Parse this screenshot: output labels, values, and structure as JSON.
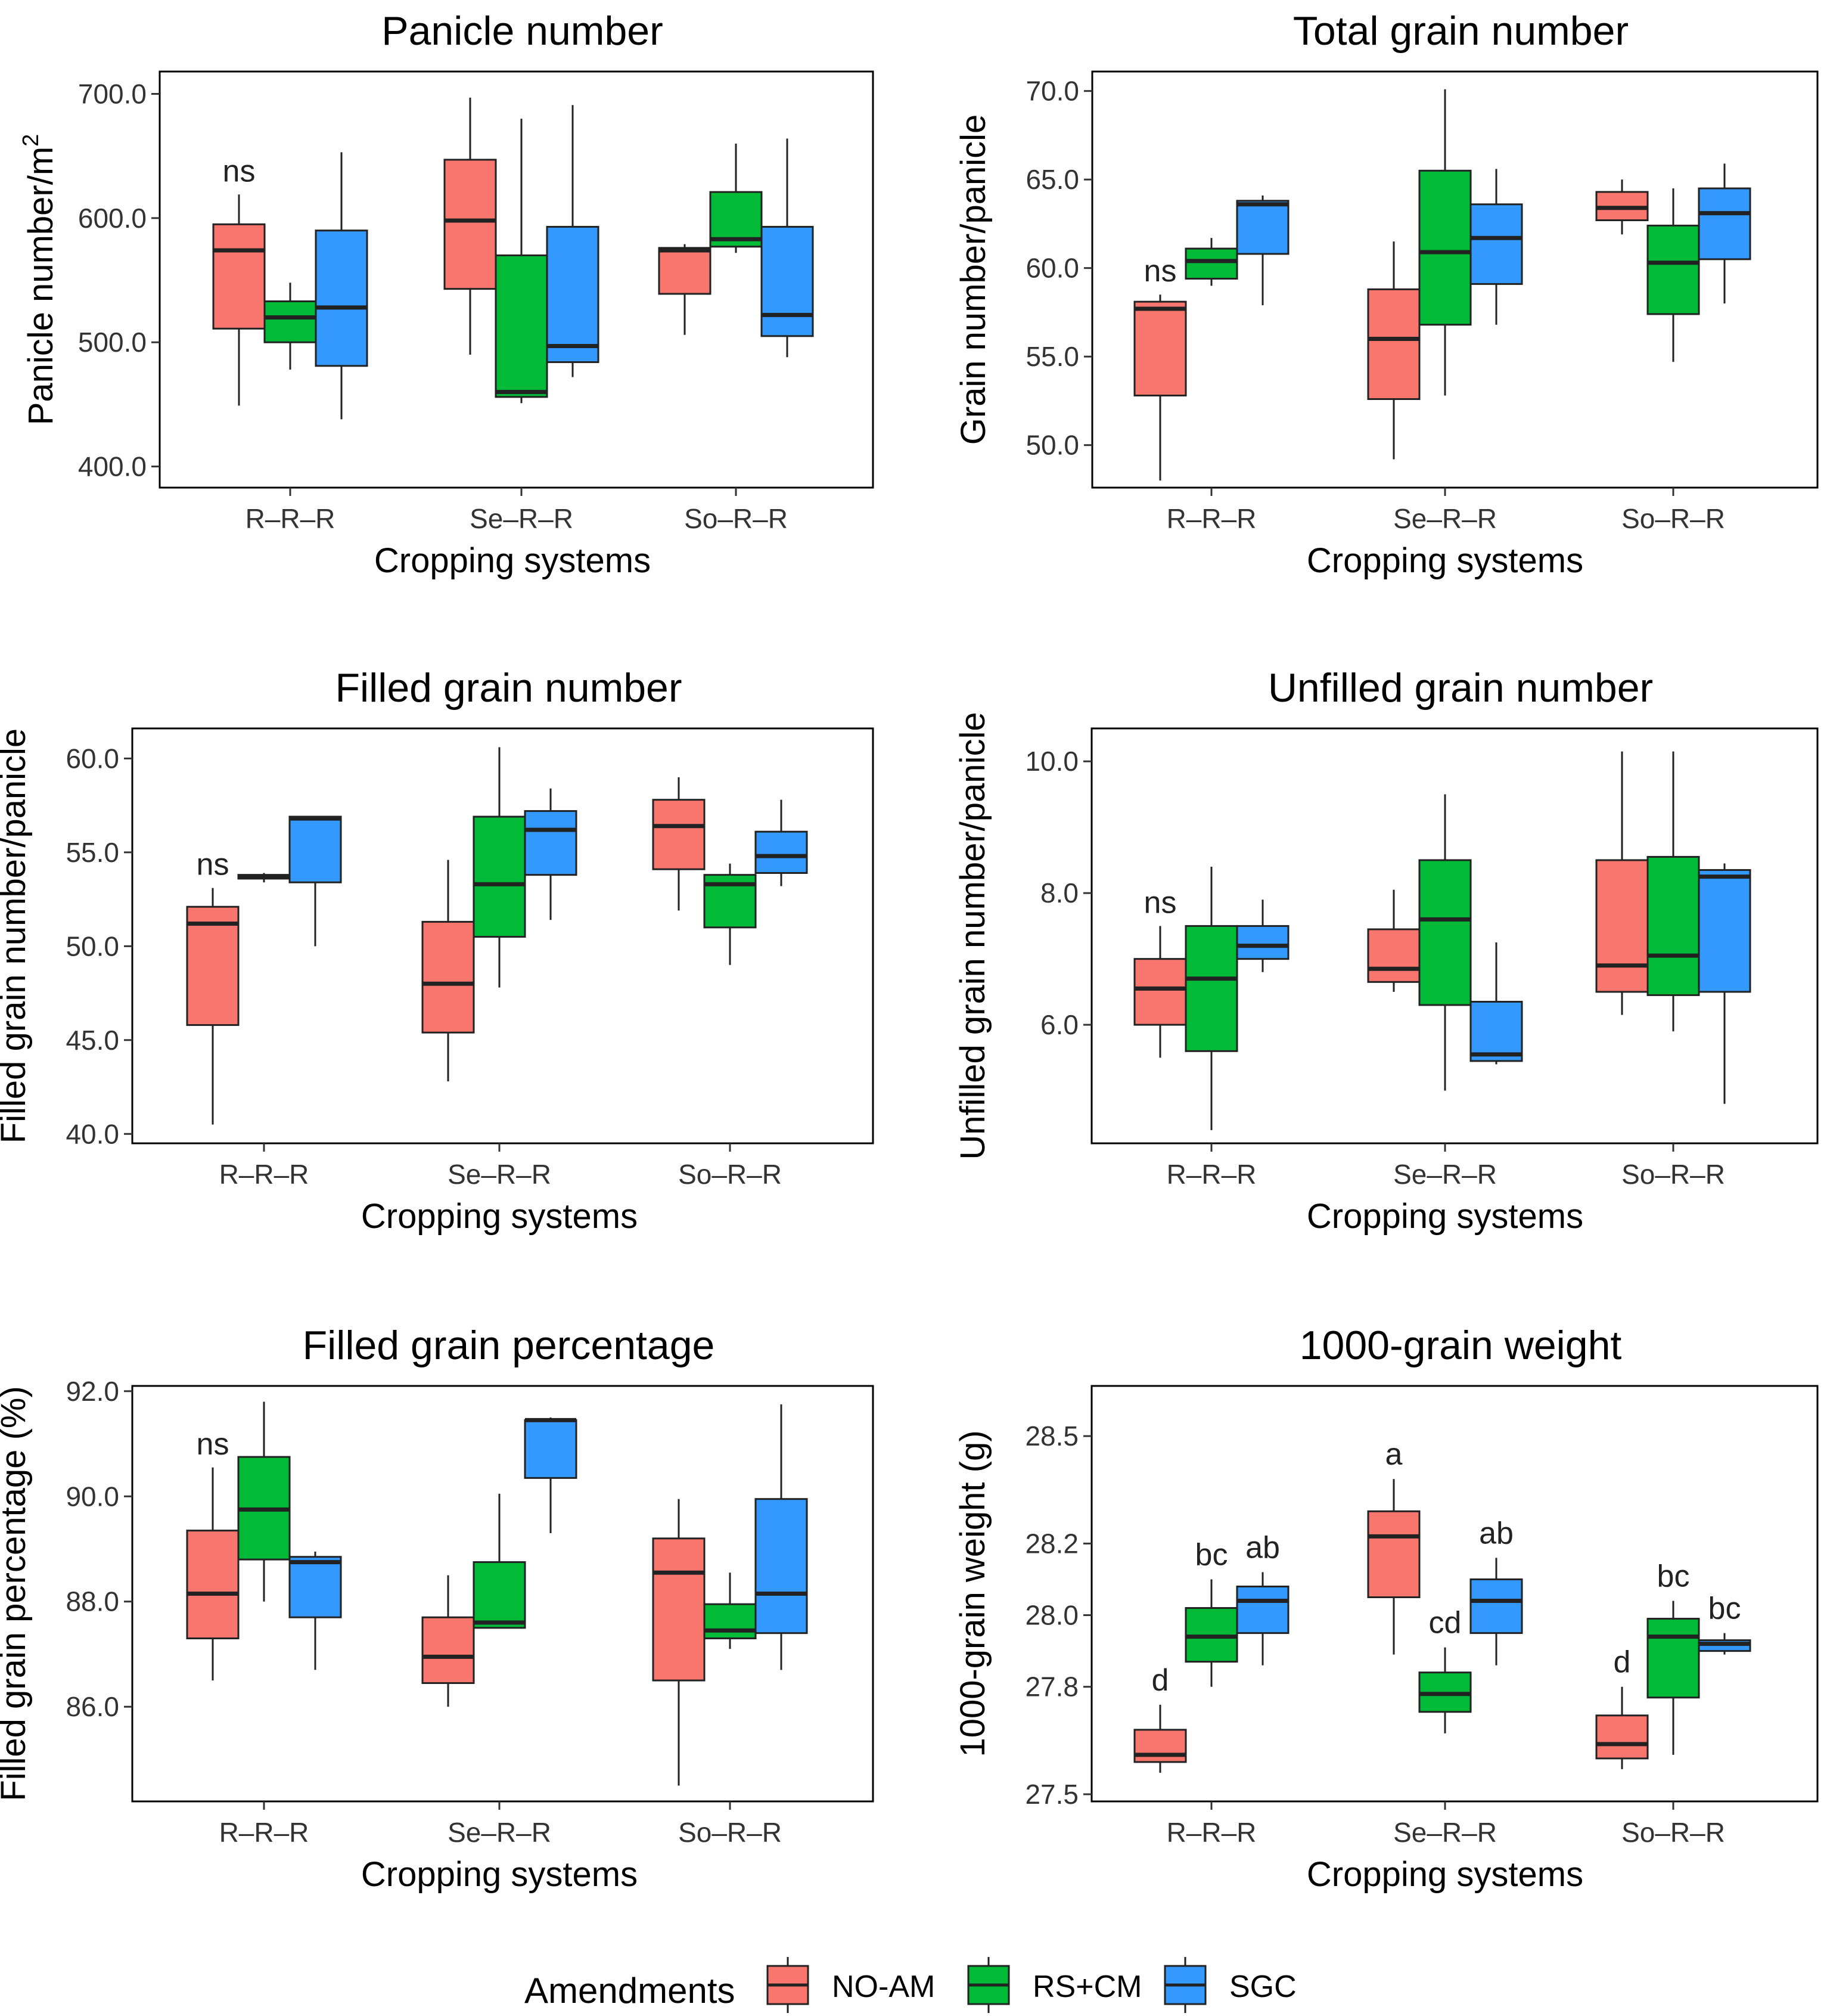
{
  "x_categories": [
    "R–R–R",
    "Se–R–R",
    "So–R–R"
  ],
  "legend": {
    "title": "Amendments",
    "entries": [
      {
        "name": "NO-AM",
        "color": "#F8766D"
      },
      {
        "name": "RS+CM",
        "color": "#00BA38"
      },
      {
        "name": "SGC",
        "color": "#3399FF"
      }
    ]
  },
  "chart_data": [
    {
      "type": "boxplot",
      "title": "Panicle number",
      "xlabel": "Cropping systems",
      "ylabel": "Panicle number/m",
      "ylabel_sup": "2",
      "ylim": [
        383,
        718
      ],
      "yticks": [
        400,
        500,
        600,
        700
      ],
      "tick_decimals": 1,
      "annotations": [
        {
          "group": 0,
          "text": "ns"
        }
      ],
      "groups": [
        [
          {
            "min": 449,
            "q1": 511,
            "median": 574,
            "q3": 595,
            "max": 619
          },
          {
            "min": 478,
            "q1": 500,
            "median": 520,
            "q3": 533,
            "max": 548
          },
          {
            "min": 438,
            "q1": 481,
            "median": 528,
            "q3": 590,
            "max": 653
          }
        ],
        [
          {
            "min": 490,
            "q1": 543,
            "median": 598,
            "q3": 647,
            "max": 697
          },
          {
            "min": 451,
            "q1": 456,
            "median": 460,
            "q3": 570,
            "max": 680
          },
          {
            "min": 472,
            "q1": 484,
            "median": 497,
            "q3": 593,
            "max": 691
          }
        ],
        [
          {
            "min": 506,
            "q1": 539,
            "median": 574,
            "q3": 576,
            "max": 579
          },
          {
            "min": 572,
            "q1": 577,
            "median": 583,
            "q3": 621,
            "max": 660
          },
          {
            "min": 488,
            "q1": 505,
            "median": 522,
            "q3": 593,
            "max": 664
          }
        ]
      ]
    },
    {
      "type": "boxplot",
      "title": "Total grain number",
      "xlabel": "Cropping systems",
      "ylabel": "Grain number/panicle",
      "ylim": [
        47.6,
        71.1
      ],
      "yticks": [
        50,
        55,
        60,
        65,
        70
      ],
      "tick_decimals": 1,
      "annotations": [
        {
          "group": 0,
          "text": "ns"
        }
      ],
      "groups": [
        [
          {
            "min": 48.0,
            "q1": 52.8,
            "median": 57.7,
            "q3": 58.1,
            "max": 58.5
          },
          {
            "min": 59.0,
            "q1": 59.4,
            "median": 60.4,
            "q3": 61.1,
            "max": 61.7
          },
          {
            "min": 57.9,
            "q1": 60.8,
            "median": 63.6,
            "q3": 63.8,
            "max": 64.1
          }
        ],
        [
          {
            "min": 49.2,
            "q1": 52.6,
            "median": 56.0,
            "q3": 58.8,
            "max": 61.5
          },
          {
            "min": 52.8,
            "q1": 56.8,
            "median": 60.9,
            "q3": 65.5,
            "max": 70.1
          },
          {
            "min": 56.8,
            "q1": 59.1,
            "median": 61.7,
            "q3": 63.6,
            "max": 65.6
          }
        ],
        [
          {
            "min": 61.9,
            "q1": 62.7,
            "median": 63.4,
            "q3": 64.3,
            "max": 65.0
          },
          {
            "min": 54.7,
            "q1": 57.4,
            "median": 60.3,
            "q3": 62.4,
            "max": 64.5
          },
          {
            "min": 58.0,
            "q1": 60.5,
            "median": 63.1,
            "q3": 64.5,
            "max": 65.9
          }
        ]
      ]
    },
    {
      "type": "boxplot",
      "title": "Filled grain number",
      "xlabel": "Cropping systems",
      "ylabel": "Filled grain number/panicle",
      "ylim": [
        39.5,
        61.6
      ],
      "yticks": [
        40,
        45,
        50,
        55,
        60
      ],
      "tick_decimals": 1,
      "annotations": [
        {
          "group": 0,
          "text": "ns"
        }
      ],
      "groups": [
        [
          {
            "min": 40.5,
            "q1": 45.8,
            "median": 51.2,
            "q3": 52.1,
            "max": 53.1
          },
          {
            "min": 53.4,
            "q1": 53.6,
            "median": 53.7,
            "q3": 53.8,
            "max": 53.9
          },
          {
            "min": 50.0,
            "q1": 53.4,
            "median": 56.8,
            "q3": 56.9,
            "max": 56.9
          }
        ],
        [
          {
            "min": 42.8,
            "q1": 45.4,
            "median": 48.0,
            "q3": 51.3,
            "max": 54.6
          },
          {
            "min": 47.8,
            "q1": 50.5,
            "median": 53.3,
            "q3": 56.9,
            "max": 60.6
          },
          {
            "min": 51.4,
            "q1": 53.8,
            "median": 56.2,
            "q3": 57.2,
            "max": 58.4
          }
        ],
        [
          {
            "min": 51.9,
            "q1": 54.1,
            "median": 56.4,
            "q3": 57.8,
            "max": 59.0
          },
          {
            "min": 49.0,
            "q1": 51.0,
            "median": 53.3,
            "q3": 53.8,
            "max": 54.4
          },
          {
            "min": 53.2,
            "q1": 53.9,
            "median": 54.8,
            "q3": 56.1,
            "max": 57.8
          }
        ]
      ]
    },
    {
      "type": "boxplot",
      "title": "Unfilled grain number",
      "xlabel": "Cropping systems",
      "ylabel": "Unfilled grain number/panicle",
      "ylim": [
        4.2,
        10.5
      ],
      "yticks": [
        6,
        8,
        10
      ],
      "tick_decimals": 1,
      "annotations": [
        {
          "group": 0,
          "text": "ns"
        }
      ],
      "groups": [
        [
          {
            "min": 5.5,
            "q1": 6.0,
            "median": 6.55,
            "q3": 7.0,
            "max": 7.5
          },
          {
            "min": 4.4,
            "q1": 5.6,
            "median": 6.7,
            "q3": 7.5,
            "max": 8.4
          },
          {
            "min": 6.8,
            "q1": 7.0,
            "median": 7.2,
            "q3": 7.5,
            "max": 7.9
          }
        ],
        [
          {
            "min": 6.5,
            "q1": 6.65,
            "median": 6.85,
            "q3": 7.45,
            "max": 8.05
          },
          {
            "min": 5.0,
            "q1": 6.3,
            "median": 7.6,
            "q3": 8.5,
            "max": 9.5
          },
          {
            "min": 5.4,
            "q1": 5.45,
            "median": 5.55,
            "q3": 6.35,
            "max": 7.25
          }
        ],
        [
          {
            "min": 6.15,
            "q1": 6.5,
            "median": 6.9,
            "q3": 8.5,
            "max": 10.15
          },
          {
            "min": 5.9,
            "q1": 6.45,
            "median": 7.05,
            "q3": 8.55,
            "max": 10.15
          },
          {
            "min": 4.8,
            "q1": 6.5,
            "median": 8.25,
            "q3": 8.35,
            "max": 8.45
          }
        ]
      ]
    },
    {
      "type": "boxplot",
      "title": "Filled grain percentage",
      "xlabel": "Cropping systems",
      "ylabel": "Filled grain percentage (%)",
      "ylim": [
        84.2,
        92.1
      ],
      "yticks": [
        86,
        88,
        90,
        92
      ],
      "tick_decimals": 1,
      "annotations": [
        {
          "group": 0,
          "text": "ns"
        }
      ],
      "groups": [
        [
          {
            "min": 86.5,
            "q1": 87.3,
            "median": 88.15,
            "q3": 89.35,
            "max": 90.55
          },
          {
            "min": 88.0,
            "q1": 88.8,
            "median": 89.75,
            "q3": 90.75,
            "max": 91.8
          },
          {
            "min": 86.7,
            "q1": 87.7,
            "median": 88.75,
            "q3": 88.85,
            "max": 88.95
          }
        ],
        [
          {
            "min": 86.0,
            "q1": 86.45,
            "median": 86.95,
            "q3": 87.7,
            "max": 88.5
          },
          {
            "min": 87.5,
            "q1": 87.5,
            "median": 87.6,
            "q3": 88.75,
            "max": 90.05
          },
          {
            "min": 89.3,
            "q1": 90.35,
            "median": 91.45,
            "q3": 91.45,
            "max": 91.5
          }
        ],
        [
          {
            "min": 84.5,
            "q1": 86.5,
            "median": 88.55,
            "q3": 89.2,
            "max": 89.95
          },
          {
            "min": 87.1,
            "q1": 87.3,
            "median": 87.45,
            "q3": 87.95,
            "max": 88.55
          },
          {
            "min": 86.7,
            "q1": 87.4,
            "median": 88.15,
            "q3": 89.95,
            "max": 91.75
          }
        ]
      ]
    },
    {
      "type": "boxplot",
      "title": "1000-grain weight",
      "xlabel": "Cropping systems",
      "ylabel": "1000-grain weight (g)",
      "ylim": [
        27.48,
        28.64
      ],
      "yticks": [
        27.5,
        27.8,
        28.0,
        28.2,
        28.5
      ],
      "tick_decimals": 1,
      "groups": [
        [
          {
            "min": 27.56,
            "q1": 27.59,
            "median": 27.61,
            "q3": 27.68,
            "max": 27.75
          },
          {
            "min": 27.8,
            "q1": 27.87,
            "median": 27.94,
            "q3": 28.02,
            "max": 28.1
          },
          {
            "min": 27.86,
            "q1": 27.95,
            "median": 28.04,
            "q3": 28.08,
            "max": 28.12
          }
        ],
        [
          {
            "min": 27.89,
            "q1": 28.05,
            "median": 28.22,
            "q3": 28.29,
            "max": 28.38
          },
          {
            "min": 27.67,
            "q1": 27.73,
            "median": 27.78,
            "q3": 27.84,
            "max": 27.91
          },
          {
            "min": 27.86,
            "q1": 27.95,
            "median": 28.04,
            "q3": 28.1,
            "max": 28.16
          }
        ],
        [
          {
            "min": 27.57,
            "q1": 27.6,
            "median": 27.64,
            "q3": 27.72,
            "max": 27.8
          },
          {
            "min": 27.61,
            "q1": 27.77,
            "median": 27.94,
            "q3": 27.99,
            "max": 28.04
          },
          {
            "min": 27.89,
            "q1": 27.9,
            "median": 27.92,
            "q3": 27.93,
            "max": 27.95
          }
        ]
      ],
      "box_labels": [
        [
          "d",
          "bc",
          "ab"
        ],
        [
          "a",
          "cd",
          "ab"
        ],
        [
          "d",
          "bc",
          "bc"
        ]
      ]
    }
  ]
}
